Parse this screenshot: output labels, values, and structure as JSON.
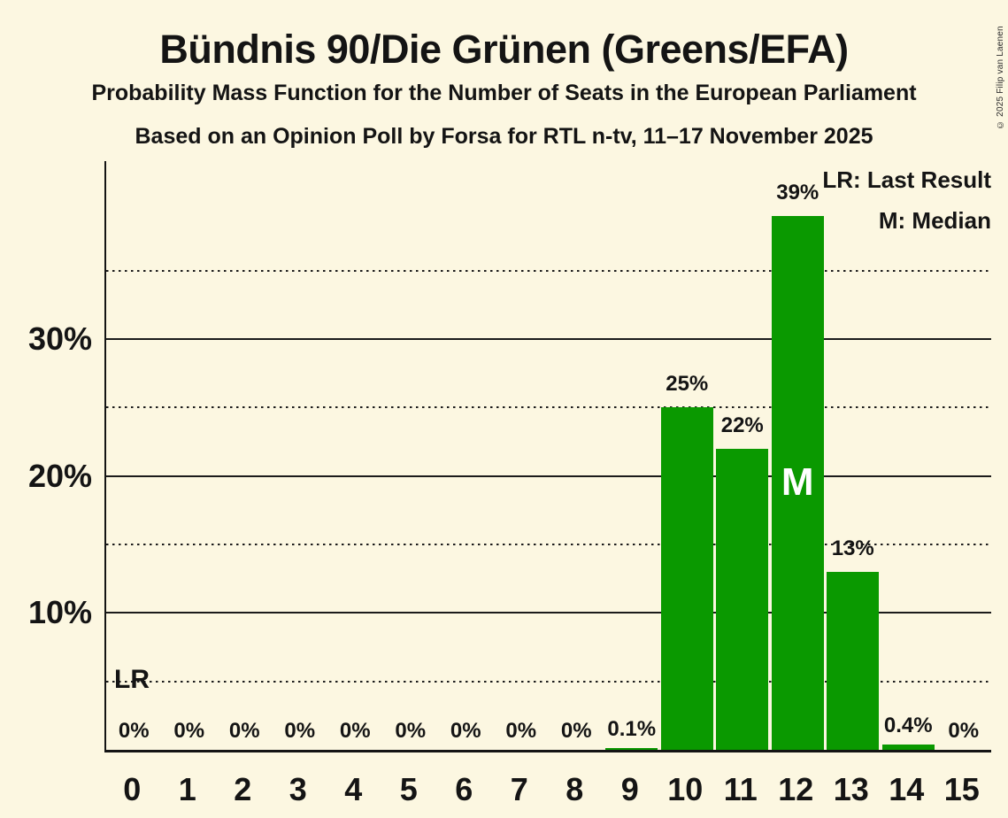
{
  "page": {
    "background_color": "#FCF7E1",
    "text_color": "#141414"
  },
  "header": {
    "title": "Bündnis 90/Die Grünen (Greens/EFA)",
    "subtitle1": "Probability Mass Function for the Number of Seats in the European Parliament",
    "subtitle2": "Based on an Opinion Poll by Forsa for RTL n-tv, 11–17 November 2025"
  },
  "legend": {
    "lr_label": "LR: Last Result",
    "m_label": "M: Median"
  },
  "copyright": "© 2025 Filip van Laenen",
  "chart_data": {
    "type": "bar",
    "title": "Bündnis 90/Die Grünen (Greens/EFA)",
    "xlabel": "",
    "ylabel": "",
    "categories": [
      0,
      1,
      2,
      3,
      4,
      5,
      6,
      7,
      8,
      9,
      10,
      11,
      12,
      13,
      14,
      15
    ],
    "values": [
      0,
      0,
      0,
      0,
      0,
      0,
      0,
      0,
      0,
      0.1,
      25,
      22,
      39,
      13,
      0.4,
      0
    ],
    "bar_labels": [
      "0%",
      "0%",
      "0%",
      "0%",
      "0%",
      "0%",
      "0%",
      "0%",
      "0%",
      "0.1%",
      "25%",
      "22%",
      "39%",
      "13%",
      "0.4%",
      "0%"
    ],
    "bar_color": "#0A9900",
    "ylim": [
      0,
      43
    ],
    "yticks": [
      {
        "value": 10,
        "label": "10%"
      },
      {
        "value": 20,
        "label": "20%"
      },
      {
        "value": 30,
        "label": "30%"
      }
    ],
    "minor_gridlines": [
      5,
      15,
      25,
      35
    ],
    "grid": "horizontal",
    "legend_position": "top-right",
    "markers": {
      "median": {
        "seat": 12,
        "label": "M"
      },
      "last_result": {
        "seat": 0,
        "label": "LR",
        "y_pct": 5
      }
    }
  }
}
